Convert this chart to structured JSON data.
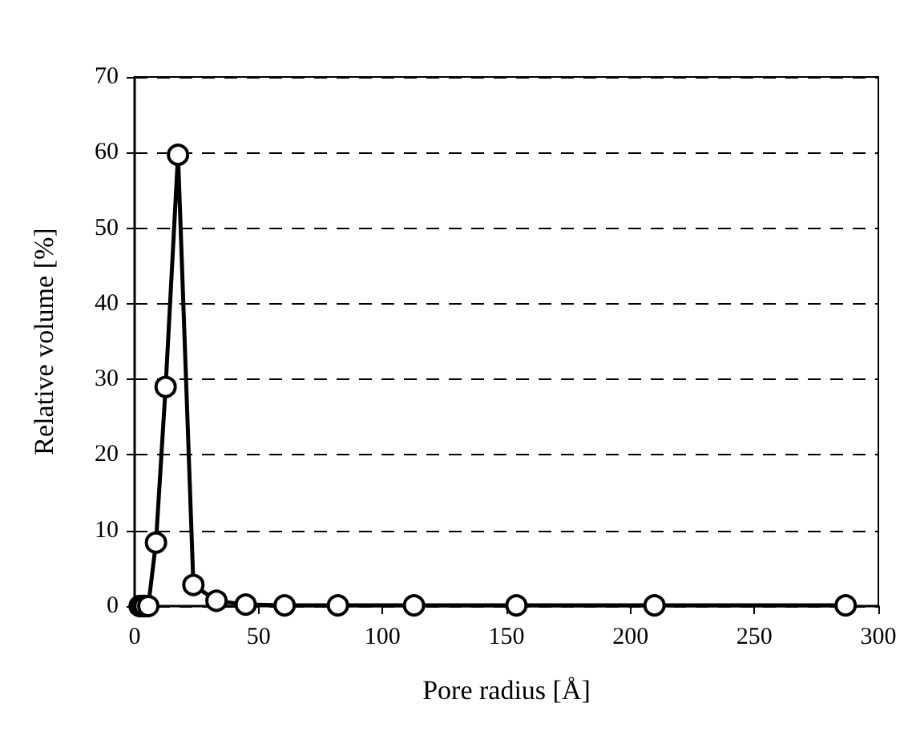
{
  "chart_data": {
    "type": "line",
    "xlabel": "Pore radius [Å]",
    "ylabel": "Relative volume [%]",
    "series": [
      {
        "color": "#000000",
        "x": [
          2,
          3,
          4,
          5.5,
          8.6,
          12.5,
          17.5,
          23.7,
          33,
          44.8,
          60.5,
          82,
          112.7,
          154,
          209.7,
          286.8
        ],
        "values": [
          0,
          0,
          0,
          0,
          8.4,
          29,
          59.7,
          2.8,
          0.7,
          0.2,
          0.1,
          0.1,
          0.1,
          0.1,
          0.1,
          0.1
        ]
      }
    ],
    "xlim": [
      0,
      300
    ],
    "xticks": [
      0,
      50,
      100,
      150,
      200,
      250,
      300
    ],
    "ylim": [
      0,
      70
    ],
    "yticks": [
      0,
      10,
      20,
      30,
      40,
      50,
      60,
      70
    ],
    "grid": "y",
    "marker": "circle",
    "line_style": "solid"
  }
}
